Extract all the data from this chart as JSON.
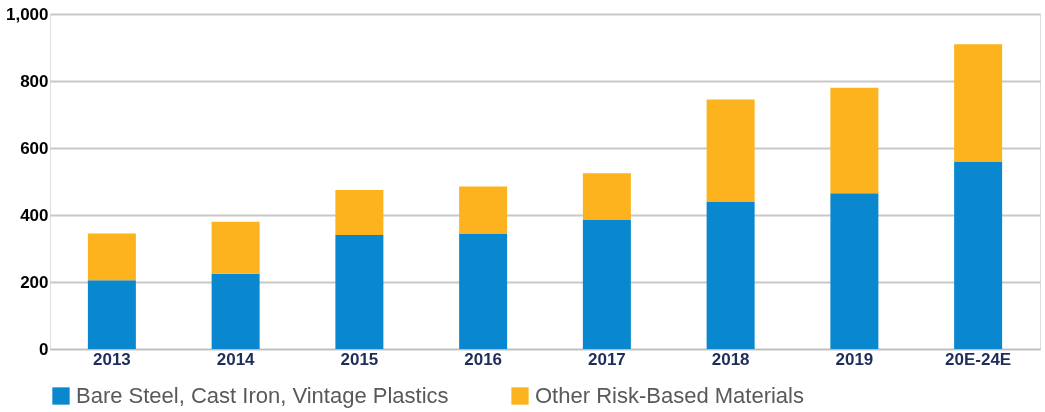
{
  "chart_data": {
    "type": "bar",
    "stacked": true,
    "categories": [
      "2013",
      "2014",
      "2015",
      "2016",
      "2017",
      "2018",
      "2019",
      "20E-24E"
    ],
    "series": [
      {
        "name": "Bare Steel, Cast Iron, Vintage Plastics",
        "color": "#0a88cf",
        "values": [
          205,
          225,
          340,
          345,
          385,
          440,
          465,
          560
        ]
      },
      {
        "name": "Other Risk-Based Materials",
        "color": "#fdb31d",
        "values": [
          140,
          155,
          135,
          140,
          140,
          305,
          315,
          350
        ]
      }
    ],
    "ylim": [
      0,
      1000
    ],
    "yticks": [
      0,
      {
        "value": 200,
        "label": "200"
      },
      {
        "value": 400,
        "label": "400"
      },
      {
        "value": 600,
        "label": "600"
      },
      {
        "value": 800,
        "label": "800"
      },
      {
        "value": 1000,
        "label": "1,000"
      }
    ],
    "grid": "y",
    "legend": "bottom"
  }
}
